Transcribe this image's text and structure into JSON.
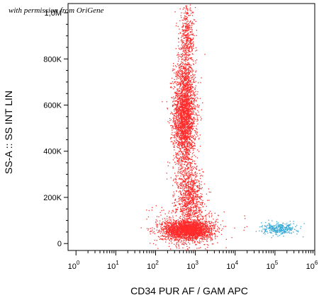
{
  "watermark": "with permission from OriGene",
  "chart_data": {
    "type": "scatter",
    "title": "",
    "xlabel": "CD34 PUR AF / GAM APC",
    "ylabel": "SS-A :: SS INT LIN",
    "x_scale": "log",
    "xlim_exponent": [
      -0.2,
      6
    ],
    "ylim": [
      -30000,
      1040000
    ],
    "x_ticks": [
      {
        "base": "10",
        "exp": "0"
      },
      {
        "base": "10",
        "exp": "1"
      },
      {
        "base": "10",
        "exp": "2"
      },
      {
        "base": "10",
        "exp": "3"
      },
      {
        "base": "10",
        "exp": "4"
      },
      {
        "base": "10",
        "exp": "5"
      },
      {
        "base": "10",
        "exp": "6"
      }
    ],
    "y_ticks": [
      {
        "value": 0,
        "label": "0"
      },
      {
        "value": 200000,
        "label": "200K"
      },
      {
        "value": 400000,
        "label": "400K"
      },
      {
        "value": 600000,
        "label": "600K"
      },
      {
        "value": 800000,
        "label": "800K"
      },
      {
        "value": 1000000,
        "label": "1,0M"
      }
    ],
    "series": [
      {
        "color": "#ff2a2a",
        "clusters": [
          {
            "x_log_center": 2.72,
            "x_log_sd": 0.14,
            "y_center": 560000,
            "y_sd": 120000,
            "n": 2600
          },
          {
            "x_log_center": 2.78,
            "x_log_sd": 0.1,
            "y_center": 890000,
            "y_sd": 70000,
            "n": 450
          },
          {
            "x_log_center": 2.85,
            "x_log_sd": 0.16,
            "y_center": 200000,
            "y_sd": 70000,
            "n": 900
          },
          {
            "x_log_center": 2.8,
            "x_log_sd": 0.32,
            "y_center": 60000,
            "y_sd": 22000,
            "n": 2200
          },
          {
            "x_log_center": 2.8,
            "x_log_sd": 0.45,
            "y_center": 80000,
            "y_sd": 60000,
            "n": 300
          }
        ]
      },
      {
        "color": "#35a8d6",
        "clusters": [
          {
            "x_log_center": 5.1,
            "x_log_sd": 0.22,
            "y_center": 65000,
            "y_sd": 12000,
            "n": 320
          }
        ]
      }
    ],
    "grid": false,
    "legend": "none"
  }
}
